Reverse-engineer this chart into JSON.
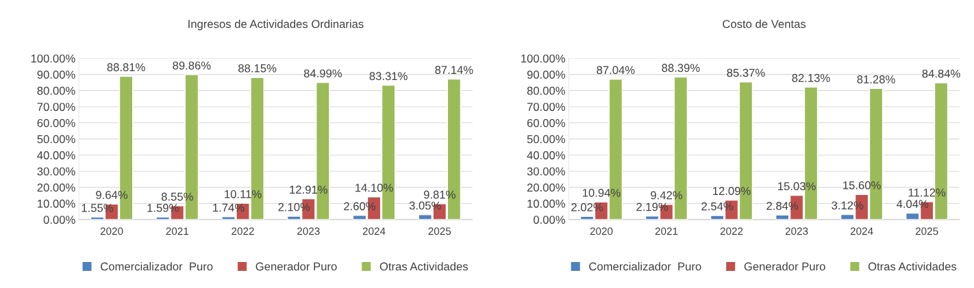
{
  "chart_data": [
    {
      "type": "bar",
      "title": "Ingresos de Actividades Ordinarias",
      "categories": [
        "2020",
        "2021",
        "2022",
        "2023",
        "2024",
        "2025"
      ],
      "series": [
        {
          "name": "Comercializador  Puro",
          "color": "#4f81bd",
          "values": [
            1.55,
            1.59,
            1.74,
            2.1,
            2.6,
            3.05
          ],
          "value_labels": [
            "1.55%",
            "1.59%",
            "1.74%",
            "2.10%",
            "2.60%",
            "3.05%"
          ]
        },
        {
          "name": "Generador Puro",
          "color": "#c0504d",
          "values": [
            9.64,
            8.55,
            10.11,
            12.91,
            14.1,
            9.81
          ],
          "value_labels": [
            "9.64%",
            "8.55%",
            "10.11%",
            "12.91%",
            "14.10%",
            "9.81%"
          ]
        },
        {
          "name": "Otras Actividades",
          "color": "#9bbb59",
          "values": [
            88.81,
            89.86,
            88.15,
            84.99,
            83.31,
            87.14
          ],
          "value_labels": [
            "88.81%",
            "89.86%",
            "88.15%",
            "84.99%",
            "83.31%",
            "87.14%"
          ]
        }
      ],
      "ylim": [
        0,
        100
      ],
      "yticks": [
        {
          "value": 0,
          "label": "0.00%"
        },
        {
          "value": 10,
          "label": "10.00%"
        },
        {
          "value": 20,
          "label": "20.00%"
        },
        {
          "value": 30,
          "label": "30.00%"
        },
        {
          "value": 40,
          "label": "40.00%"
        },
        {
          "value": 50,
          "label": "50.00%"
        },
        {
          "value": 60,
          "label": "60.00%"
        },
        {
          "value": 70,
          "label": "70.00%"
        },
        {
          "value": 80,
          "label": "80.00%"
        },
        {
          "value": 90,
          "label": "90.00%"
        },
        {
          "value": 100,
          "label": "100.00%"
        }
      ],
      "grid": "y",
      "legend": "bottom"
    },
    {
      "type": "bar",
      "title": "Costo de Ventas",
      "categories": [
        "2020",
        "2021",
        "2022",
        "2023",
        "2024",
        "2025"
      ],
      "series": [
        {
          "name": "Comercializador  Puro",
          "color": "#4f81bd",
          "values": [
            2.02,
            2.19,
            2.54,
            2.84,
            3.12,
            4.04
          ],
          "value_labels": [
            "2.02%",
            "2.19%",
            "2.54%",
            "2.84%",
            "3.12%",
            "4.04%"
          ]
        },
        {
          "name": "Generador Puro",
          "color": "#c0504d",
          "values": [
            10.94,
            9.42,
            12.09,
            15.03,
            15.6,
            11.12
          ],
          "value_labels": [
            "10.94%",
            "9.42%",
            "12.09%",
            "15.03%",
            "15.60%",
            "11.12%"
          ]
        },
        {
          "name": "Otras Actividades",
          "color": "#9bbb59",
          "values": [
            87.04,
            88.39,
            85.37,
            82.13,
            81.28,
            84.84
          ],
          "value_labels": [
            "87.04%",
            "88.39%",
            "85.37%",
            "82.13%",
            "81.28%",
            "84.84%"
          ]
        }
      ],
      "ylim": [
        0,
        100
      ],
      "yticks": [
        {
          "value": 0,
          "label": "0.00%"
        },
        {
          "value": 10,
          "label": "10.00%"
        },
        {
          "value": 20,
          "label": "20.00%"
        },
        {
          "value": 30,
          "label": "30.00%"
        },
        {
          "value": 40,
          "label": "40.00%"
        },
        {
          "value": 50,
          "label": "50.00%"
        },
        {
          "value": 60,
          "label": "60.00%"
        },
        {
          "value": 70,
          "label": "70.00%"
        },
        {
          "value": 80,
          "label": "80.00%"
        },
        {
          "value": 90,
          "label": "90.00%"
        },
        {
          "value": 100,
          "label": "100.00%"
        }
      ],
      "grid": "y",
      "legend": "bottom"
    }
  ]
}
